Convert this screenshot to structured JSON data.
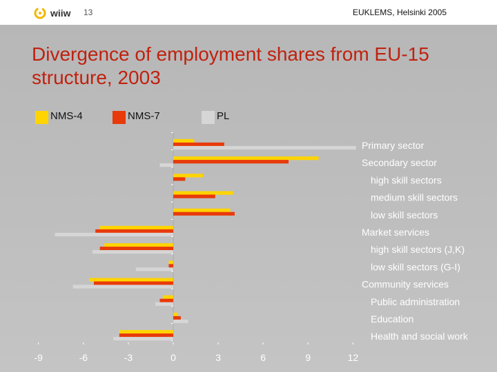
{
  "header": {
    "logo_text": "wiiw",
    "page_number": "13",
    "conference": "EUKLEMS, Helsinki 2005"
  },
  "title": "Divergence of employment shares from EU-15 structure, 2003",
  "colors": {
    "nms4": "#ffd400",
    "nms7": "#e83a0a",
    "pl": "#d6d6d6",
    "title": "#c0210f"
  },
  "chart_data": {
    "type": "bar",
    "orientation": "horizontal",
    "title": "Divergence of employment shares from EU-15 structure, 2003",
    "legend": "top",
    "xlim": [
      -9,
      12
    ],
    "x_ticks": [
      "-9",
      "-6",
      "-3",
      "0",
      "3",
      "6",
      "9",
      "12"
    ],
    "categories": [
      {
        "label": "Primary sector",
        "indent": false
      },
      {
        "label": "Secondary sector",
        "indent": false
      },
      {
        "label": "high skill sectors",
        "indent": true
      },
      {
        "label": "medium skill sectors",
        "indent": true
      },
      {
        "label": "low skill sectors",
        "indent": true
      },
      {
        "label": "Market services",
        "indent": false
      },
      {
        "label": "high skill sectors (J,K)",
        "indent": true
      },
      {
        "label": "low skill sectors (G-I)",
        "indent": true
      },
      {
        "label": "Community services",
        "indent": false
      },
      {
        "label": "Public administration",
        "indent": true
      },
      {
        "label": "Education",
        "indent": true
      },
      {
        "label": "Health and social work",
        "indent": true
      }
    ],
    "series": [
      {
        "name": "NMS-4",
        "values": [
          1.4,
          9.7,
          2.0,
          4.0,
          3.8,
          -4.9,
          -4.6,
          -0.3,
          -5.6,
          -0.7,
          0.3,
          -3.6
        ]
      },
      {
        "name": "NMS-7",
        "values": [
          3.4,
          7.7,
          0.8,
          2.8,
          4.1,
          -5.2,
          -4.9,
          -0.3,
          -5.3,
          -0.9,
          0.5,
          -3.6
        ]
      },
      {
        "name": "PL",
        "values": [
          12.2,
          -0.9,
          0.0,
          0.0,
          0.0,
          -7.9,
          -5.4,
          -2.5,
          -6.7,
          -1.2,
          1.0,
          -4.0
        ]
      }
    ]
  }
}
